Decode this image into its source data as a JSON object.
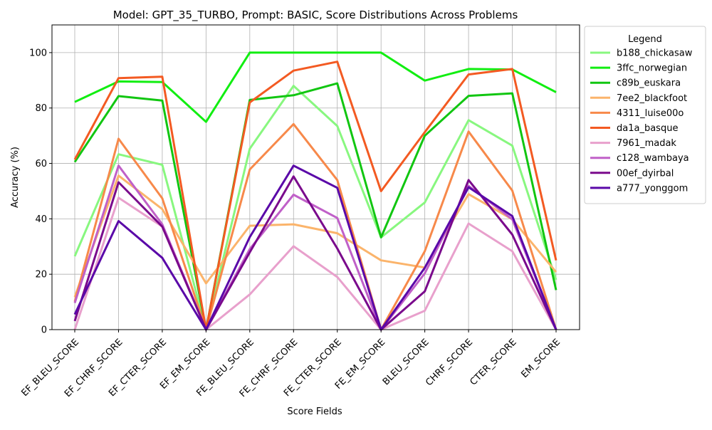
{
  "chart_data": {
    "type": "line",
    "title": "Model: GPT_35_TURBO, Prompt: BASIC, Score Distributions Across Problems",
    "xlabel": "Score Fields",
    "ylabel": "Accuracy (%)",
    "ylim": [
      0,
      110
    ],
    "yticks": [
      0,
      20,
      40,
      60,
      80,
      100
    ],
    "grid": true,
    "legend_title": "Legend",
    "legend_position": "outside right, top",
    "categories": [
      "EF_BLEU_SCORE",
      "EF_CHRF_SCORE",
      "EF_CTER_SCORE",
      "EF_EM_SCORE",
      "FE_BLEU_SCORE",
      "FE_CHRF_SCORE",
      "FE_CTER_SCORE",
      "FE_EM_SCORE",
      "BLEU_SCORE",
      "CHRF_SCORE",
      "CTER_SCORE",
      "EM_SCORE"
    ],
    "series": [
      {
        "name": "b188_chickasaw",
        "color": "#88f77f",
        "values": [
          26.5,
          63.3,
          59.5,
          0,
          65.3,
          88,
          73.5,
          33.3,
          45.9,
          75.6,
          66.4,
          18
        ]
      },
      {
        "name": "3ffc_norwegian",
        "color": "#11ee11",
        "values": [
          82.2,
          89.6,
          89.4,
          75,
          100,
          100,
          100,
          100,
          89.9,
          94.1,
          93.9,
          85.7
        ]
      },
      {
        "name": "c89b_euskara",
        "color": "#11c611",
        "values": [
          60.5,
          84.3,
          82.7,
          0,
          82.9,
          84.6,
          88.9,
          33.3,
          70,
          84.4,
          85.3,
          14.3
        ]
      },
      {
        "name": "7ee2_blackfoot",
        "color": "#fbb46b",
        "values": [
          11.8,
          55.6,
          43.5,
          16.7,
          37.5,
          38,
          34.8,
          25,
          22.4,
          48.9,
          39.8,
          20.8
        ]
      },
      {
        "name": "4311_luise00o",
        "color": "#f7894a",
        "values": [
          10.1,
          68.9,
          47.4,
          0,
          57.8,
          74.2,
          54,
          0,
          28.3,
          71.5,
          50.2,
          0
        ]
      },
      {
        "name": "da1a_basque",
        "color": "#f35a22",
        "values": [
          61.4,
          90.8,
          91.3,
          0,
          82,
          93.5,
          96.7,
          50,
          71.3,
          92.1,
          94.1,
          25
        ]
      },
      {
        "name": "7961_madak",
        "color": "#e8a0cc",
        "values": [
          0,
          47.6,
          37.2,
          0,
          12.7,
          30.1,
          19,
          0,
          6.8,
          38.3,
          28.3,
          0
        ]
      },
      {
        "name": "c128_wambaya",
        "color": "#c060c8",
        "values": [
          9.6,
          59.2,
          38,
          0,
          29.1,
          48.7,
          40.3,
          0,
          20.3,
          51.9,
          39.8,
          0
        ]
      },
      {
        "name": "00ef_dyirbal",
        "color": "#7a0a8c",
        "values": [
          3.1,
          53.2,
          37.2,
          0,
          27.9,
          55.3,
          29.3,
          0,
          13.8,
          54,
          34.3,
          0
        ]
      },
      {
        "name": "a777_yonggom",
        "color": "#5a08a8",
        "values": [
          5.5,
          39.2,
          25.9,
          0,
          33.4,
          59.2,
          51.2,
          0,
          22.3,
          51.4,
          41,
          0
        ]
      }
    ]
  }
}
